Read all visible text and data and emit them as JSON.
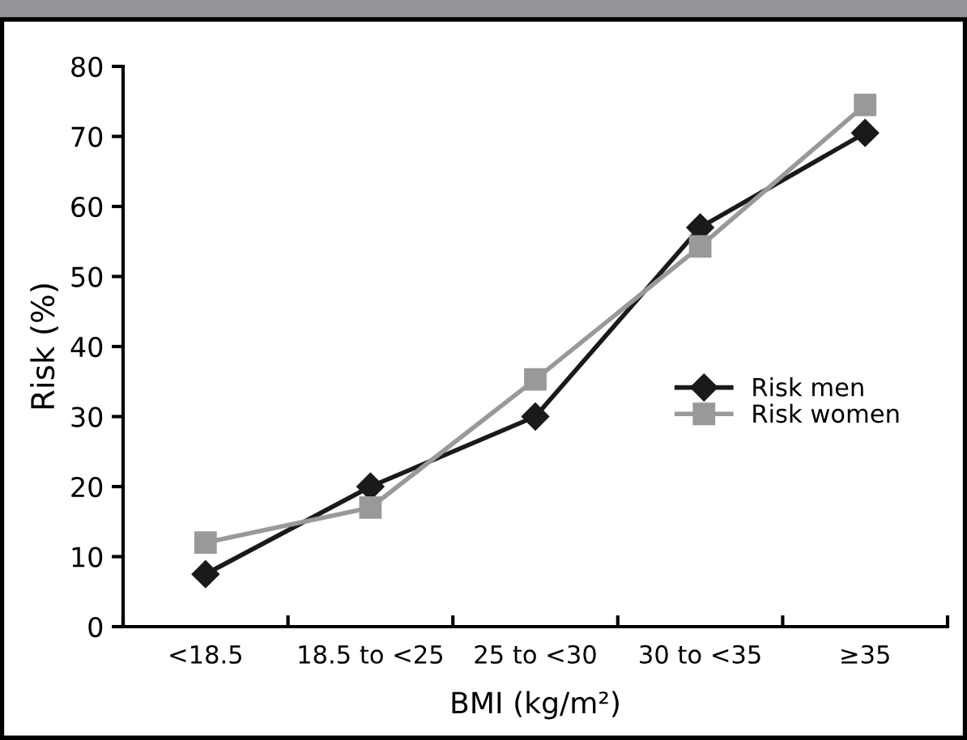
{
  "chart_data": {
    "type": "line",
    "xlabel": "BMI (kg/m²)",
    "ylabel": "Risk (%)",
    "categories": [
      "<18.5",
      "18.5 to <25",
      "25 to <30",
      "30 to <35",
      "≥35"
    ],
    "series": [
      {
        "name": "Risk men",
        "color": "#1a1a1a",
        "marker": "diamond",
        "values": [
          7.5,
          20,
          30,
          57,
          70.5
        ]
      },
      {
        "name": "Risk women",
        "color": "#999999",
        "marker": "square",
        "values": [
          12,
          17,
          35.3,
          54.3,
          74.5
        ]
      }
    ],
    "ylim": [
      0,
      80
    ],
    "yticks": [
      0,
      10,
      20,
      30,
      40,
      50,
      60,
      70,
      80
    ],
    "grid": false,
    "legend": "right",
    "line_style": "solid"
  }
}
